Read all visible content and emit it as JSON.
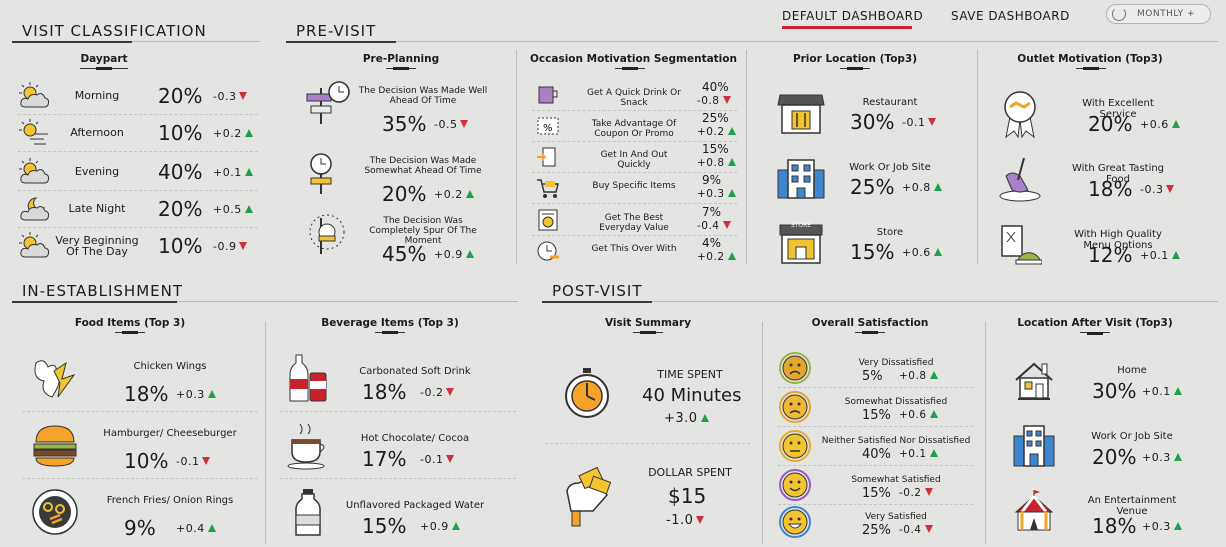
{
  "header": {
    "default_dashboard": "DEFAULT DASHBOARD",
    "save_dashboard": "SAVE DASHBOARD",
    "period": "MONTHLY +"
  },
  "sections": {
    "visit_classification": "VISIT CLASSIFICATION",
    "pre_visit": "PRE-VISIT",
    "in_establishment": "IN-ESTABLISHMENT",
    "post_visit": "POST-VISIT"
  },
  "daypart": {
    "title": "Daypart",
    "rows": [
      {
        "label": "Morning",
        "value": "20%",
        "delta": "-0.3",
        "dir": "down",
        "icon": "sun-cloud-icon"
      },
      {
        "label": "Afternoon",
        "value": "10%",
        "delta": "+0.2",
        "dir": "up",
        "icon": "sun-wind-icon"
      },
      {
        "label": "Evening",
        "value": "40%",
        "delta": "+0.1",
        "dir": "up",
        "icon": "sun-cloud-icon"
      },
      {
        "label": "Late Night",
        "value": "20%",
        "delta": "+0.5",
        "dir": "up",
        "icon": "moon-cloud-icon"
      },
      {
        "label": "Very Beginning Of The Day",
        "value": "10%",
        "delta": "-0.9",
        "dir": "down",
        "icon": "sunrise-cloud-icon"
      }
    ]
  },
  "preplanning": {
    "title": "Pre-Planning",
    "rows": [
      {
        "label": "The Decision Was Made Well Ahead Of Time",
        "value": "35%",
        "delta": "-0.5",
        "dir": "down"
      },
      {
        "label": "The Decision Was Made Somewhat Ahead Of Time",
        "value": "20%",
        "delta": "+0.2",
        "dir": "up"
      },
      {
        "label": "The Decision Was Completely Spur Of The Moment",
        "value": "45%",
        "delta": "+0.9",
        "dir": "up"
      }
    ]
  },
  "occasion": {
    "title": "Occasion Motivation Segmentation",
    "rows": [
      {
        "label": "Get A Quick Drink Or Snack",
        "value": "40%",
        "delta": "-0.8",
        "dir": "down"
      },
      {
        "label": "Take Advantage Of Coupon Or Promo",
        "value": "25%",
        "delta": "+0.2",
        "dir": "up"
      },
      {
        "label": "Get In And Out Quickly",
        "value": "15%",
        "delta": "+0.8",
        "dir": "up"
      },
      {
        "label": "Buy Specific Items",
        "value": "9%",
        "delta": "+0.3",
        "dir": "up"
      },
      {
        "label": "Get The Best Everyday Value",
        "value": "7%",
        "delta": "-0.4",
        "dir": "down"
      },
      {
        "label": "Get This Over With",
        "value": "4%",
        "delta": "+0.2",
        "dir": "up"
      }
    ]
  },
  "prior": {
    "title": "Prior Location (Top3)",
    "rows": [
      {
        "label": "Restaurant",
        "value": "30%",
        "delta": "-0.1",
        "dir": "down"
      },
      {
        "label": "Work Or Job Site",
        "value": "25%",
        "delta": "+0.8",
        "dir": "up"
      },
      {
        "label": "Store",
        "value": "15%",
        "delta": "+0.6",
        "dir": "up",
        "sign": "STORE"
      }
    ]
  },
  "outlet": {
    "title": "Outlet Motivation (Top3)",
    "rows": [
      {
        "label": "With Excellent Service",
        "value": "20%",
        "delta": "+0.6",
        "dir": "up"
      },
      {
        "label": "With Great Tasting Food",
        "value": "18%",
        "delta": "-0.3",
        "dir": "down"
      },
      {
        "label": "With High Quality Menu Options",
        "value": "12%",
        "delta": "+0.1",
        "dir": "up"
      }
    ]
  },
  "food": {
    "title": "Food Items (Top 3)",
    "rows": [
      {
        "label": "Chicken Wings",
        "value": "18%",
        "delta": "+0.3",
        "dir": "up"
      },
      {
        "label": "Hamburger/ Cheeseburger",
        "value": "10%",
        "delta": "-0.1",
        "dir": "down"
      },
      {
        "label": "French Fries/ Onion Rings",
        "value": "9%",
        "delta": "+0.4",
        "dir": "up"
      }
    ]
  },
  "beverage": {
    "title": "Beverage Items (Top 3)",
    "rows": [
      {
        "label": "Carbonated Soft Drink",
        "value": "18%",
        "delta": "-0.2",
        "dir": "down"
      },
      {
        "label": "Hot Chocolate/ Cocoa",
        "value": "17%",
        "delta": "-0.1",
        "dir": "down"
      },
      {
        "label": "Unflavored Packaged Water",
        "value": "15%",
        "delta": "+0.9",
        "dir": "up"
      }
    ]
  },
  "summary": {
    "title": "Visit Summary",
    "time": {
      "label": "TIME SPENT",
      "value": "40 Minutes",
      "delta": "+3.0",
      "dir": "up"
    },
    "dollar": {
      "label": "DOLLAR SPENT",
      "value": "$15",
      "delta": "-1.0",
      "dir": "down"
    }
  },
  "satisfaction": {
    "title": "Overall Satisfaction",
    "rows": [
      {
        "label": "Very Dissatisfied",
        "value": "5%",
        "delta": "+0.8",
        "dir": "up",
        "color": "#e3a72f",
        "ring": "#9ab545",
        "mouth": "sad2"
      },
      {
        "label": "Somewhat Dissatisfied",
        "value": "15%",
        "delta": "+0.6",
        "dir": "up",
        "color": "#f0b637",
        "ring": "#e3a72f",
        "mouth": "sad"
      },
      {
        "label": "Neither Satisfied Nor Dissatisfied",
        "value": "40%",
        "delta": "+0.1",
        "dir": "up",
        "color": "#f2c431",
        "ring": "#e6ae2d",
        "mouth": "flat"
      },
      {
        "label": "Somewhat Satisfied",
        "value": "15%",
        "delta": "-0.2",
        "dir": "down",
        "color": "#f2c431",
        "ring": "#9b5bc1",
        "mouth": "smile"
      },
      {
        "label": "Very Satisfied",
        "value": "25%",
        "delta": "-0.4",
        "dir": "down",
        "color": "#f2c431",
        "ring": "#3e87cf",
        "mouth": "grin"
      }
    ]
  },
  "after": {
    "title": "Location After Visit (Top3)",
    "rows": [
      {
        "label": "Home",
        "value": "30%",
        "delta": "+0.1",
        "dir": "up"
      },
      {
        "label": "Work Or Job Site",
        "value": "20%",
        "delta": "+0.3",
        "dir": "up"
      },
      {
        "label": "An Entertainment Venue",
        "value": "18%",
        "delta": "+0.3",
        "dir": "up"
      }
    ]
  }
}
